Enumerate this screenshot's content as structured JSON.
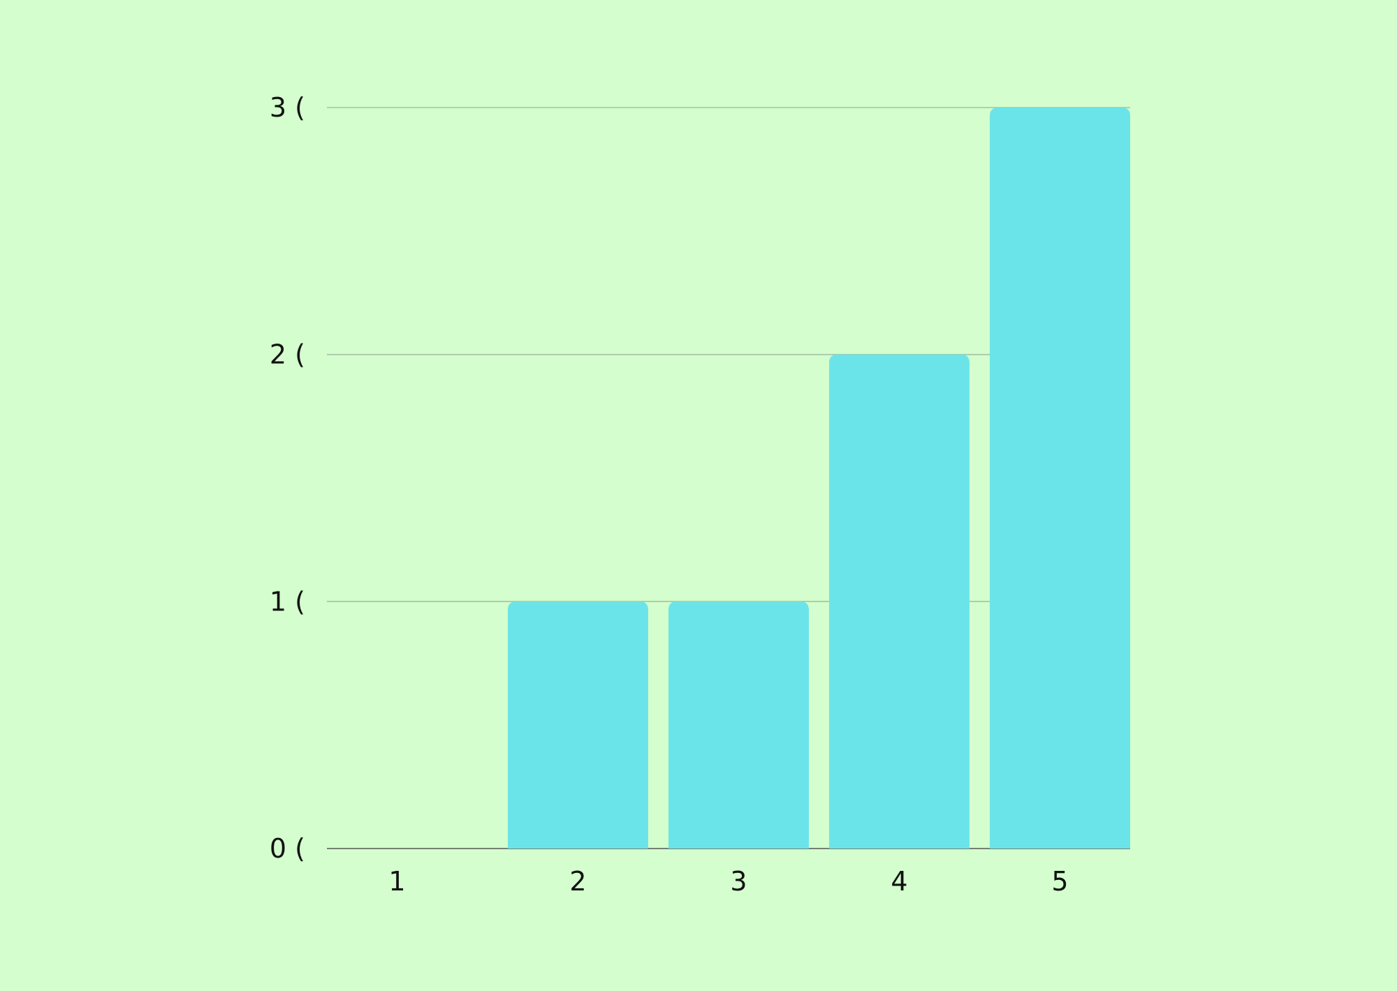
{
  "colors": {
    "background": "#d4fecd",
    "bar": "#6be4e9",
    "grid": "#a6bfa6",
    "baseline": "#555555",
    "text": "#111111"
  },
  "chart_data": {
    "type": "bar",
    "categories": [
      "1",
      "2",
      "3",
      "4",
      "5"
    ],
    "values": [
      0,
      1,
      1,
      2,
      3
    ],
    "y_ticks": [
      "0 (",
      "1 (",
      "2 (",
      "3 ("
    ],
    "ylim": [
      0,
      3
    ],
    "grid": true,
    "legend": "none"
  }
}
